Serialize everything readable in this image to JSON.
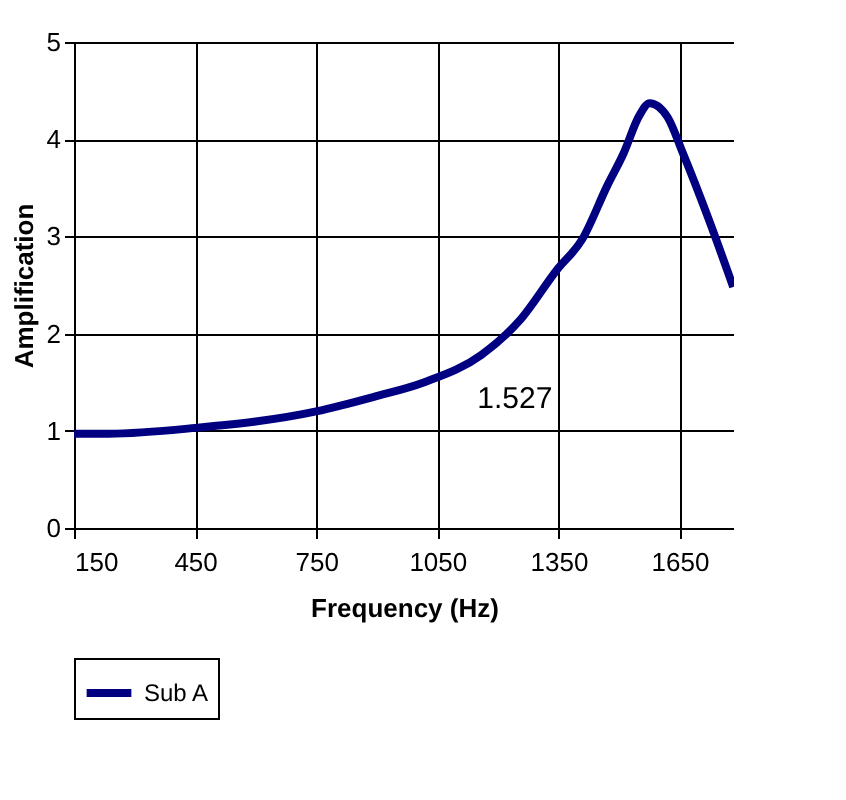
{
  "chart_data": {
    "type": "line",
    "xlabel": "Frequency (Hz)",
    "ylabel": "Amplification",
    "xlim": [
      150,
      1785
    ],
    "xticks": [
      150,
      450,
      750,
      1050,
      1350,
      1650
    ],
    "ylim": [
      0,
      5
    ],
    "yticks": [
      0,
      1,
      2,
      3,
      4,
      5
    ],
    "grid": true,
    "legend": "bottom",
    "marker": "none",
    "line_style": "solid",
    "annotations": [
      {
        "text": "1.527",
        "x": 1050,
        "y": 1.527
      }
    ],
    "series": [
      {
        "name": "Sub A",
        "color": "#000080",
        "x": [
          150,
          236,
          450,
          750,
          893,
          1018,
          1159,
          1253,
          1347,
          1409,
          1472,
          1511,
          1550,
          1576,
          1620,
          1659,
          1722,
          1783
        ],
        "values": [
          0.97,
          0.97,
          1.03,
          1.2,
          1.35,
          1.5,
          1.78,
          2.13,
          2.66,
          2.97,
          3.53,
          3.85,
          4.24,
          4.37,
          4.23,
          3.85,
          3.18,
          2.48
        ]
      }
    ]
  }
}
